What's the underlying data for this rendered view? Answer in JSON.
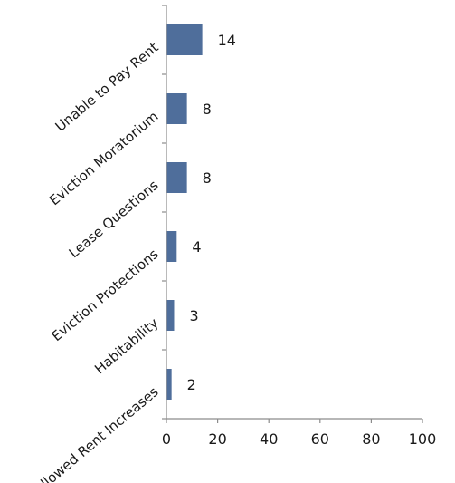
{
  "chart_data": {
    "type": "bar",
    "orientation": "horizontal",
    "categories": [
      "Unable to Pay Rent",
      "Eviction Moratorium",
      "Lease Questions",
      "Eviction Protections",
      "Habitability",
      "Allowed Rent Increases"
    ],
    "values": [
      14,
      8,
      8,
      4,
      3,
      2
    ],
    "title": "",
    "xlabel": "",
    "ylabel": "",
    "xlim": [
      0,
      100
    ],
    "xticks": [
      0,
      20,
      40,
      60,
      80,
      100
    ],
    "grid": false,
    "data_labels": true,
    "bar_color": "#4f6e9b"
  }
}
